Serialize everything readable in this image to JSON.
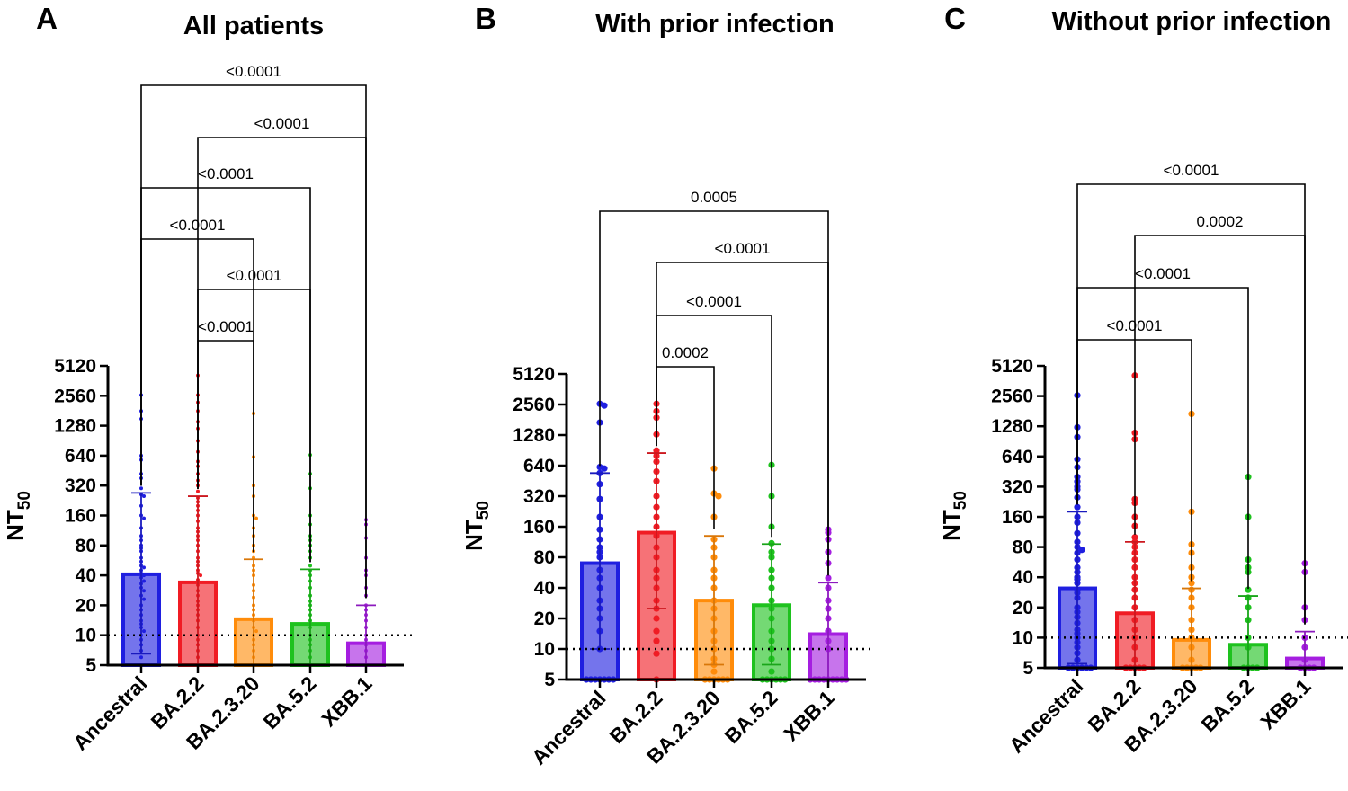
{
  "chart_data": [
    {
      "type": "bar",
      "panel_letter": "A",
      "title": "All patients",
      "ylabel": "NT",
      "ylabel_subscript": "50",
      "yscale": "log2",
      "ylim": [
        5,
        5120
      ],
      "yticks": [
        5,
        10,
        20,
        40,
        80,
        160,
        320,
        640,
        1280,
        2560,
        5120
      ],
      "threshold": 10,
      "categories": [
        "Ancestral",
        "BA.2.2",
        "BA.2.3.20",
        "BA.5.2",
        "XBB.1"
      ],
      "colors": [
        "#1f1fe0",
        "#f01c24",
        "#ff8c0a",
        "#1ec21e",
        "#a51ee0"
      ],
      "means": [
        41,
        34,
        14.5,
        13,
        8.3
      ],
      "error_bars": [
        [
          6.5,
          270
        ],
        [
          5,
          250
        ],
        [
          5,
          58
        ],
        [
          5,
          46
        ],
        [
          5,
          20
        ]
      ],
      "points": [
        [
          2600,
          1800,
          1500,
          640,
          580,
          420,
          380,
          300,
          260,
          250,
          200,
          160,
          150,
          120,
          100,
          90,
          80,
          75,
          70,
          60,
          55,
          50,
          48,
          45,
          42,
          40,
          38,
          35,
          33,
          30,
          28,
          25,
          23,
          20,
          18,
          16,
          14,
          13,
          12,
          11,
          10,
          9,
          8,
          7,
          6,
          5,
          5,
          5,
          5,
          5
        ],
        [
          4100,
          2600,
          2200,
          1800,
          1400,
          1200,
          900,
          700,
          560,
          500,
          420,
          360,
          320,
          280,
          240,
          220,
          200,
          180,
          160,
          140,
          120,
          110,
          100,
          90,
          80,
          70,
          60,
          55,
          50,
          45,
          42,
          40,
          36,
          32,
          28,
          25,
          22,
          20,
          18,
          16,
          14,
          12,
          10,
          9,
          8,
          7,
          6,
          5,
          5,
          5,
          5,
          5
        ],
        [
          1700,
          620,
          320,
          250,
          160,
          150,
          120,
          100,
          80,
          70,
          60,
          50,
          45,
          40,
          32,
          28,
          24,
          20,
          18,
          16,
          14,
          12,
          11,
          10,
          9,
          8,
          7,
          6,
          5,
          5,
          5,
          5,
          5
        ],
        [
          650,
          420,
          300,
          160,
          130,
          100,
          90,
          80,
          70,
          60,
          50,
          45,
          40,
          35,
          30,
          25,
          22,
          20,
          18,
          16,
          14,
          12,
          10,
          9,
          8,
          7,
          6,
          5,
          5,
          5,
          5
        ],
        [
          145,
          130,
          95,
          60,
          45,
          40,
          30,
          25,
          20,
          18,
          16,
          14,
          12,
          10,
          9,
          8,
          7,
          6,
          5,
          5,
          5,
          5
        ]
      ],
      "comparisons": [
        {
          "from": 0,
          "to": 4,
          "label": "<0.0001"
        },
        {
          "from": 1,
          "to": 4,
          "label": "<0.0001"
        },
        {
          "from": 0,
          "to": 3,
          "label": "<0.0001"
        },
        {
          "from": 0,
          "to": 2,
          "label": "<0.0001"
        },
        {
          "from": 1,
          "to": 3,
          "label": "<0.0001"
        },
        {
          "from": 1,
          "to": 2,
          "label": "<0.0001"
        }
      ]
    },
    {
      "type": "bar",
      "panel_letter": "B",
      "title": "With prior infection",
      "ylabel": "NT",
      "ylabel_subscript": "50",
      "yscale": "log2",
      "ylim": [
        5,
        5120
      ],
      "yticks": [
        5,
        10,
        20,
        40,
        80,
        160,
        320,
        640,
        1280,
        2560,
        5120
      ],
      "threshold": 10,
      "categories": [
        "Ancestral",
        "BA.2.2",
        "BA.2.3.20",
        "BA.5.2",
        "XBB.1"
      ],
      "colors": [
        "#1f1fe0",
        "#f01c24",
        "#ff8c0a",
        "#1ec21e",
        "#a51ee0"
      ],
      "means": [
        70,
        140,
        30,
        27,
        14
      ],
      "error_bars": [
        [
          10,
          540
        ],
        [
          25,
          850
        ],
        [
          7,
          130
        ],
        [
          7,
          108
        ],
        [
          5,
          45
        ]
      ],
      "points": [
        [
          2600,
          2500,
          1700,
          620,
          600,
          540,
          420,
          300,
          200,
          150,
          120,
          100,
          90,
          80,
          60,
          50,
          40,
          30,
          25,
          20,
          15,
          10,
          5,
          5,
          5,
          5,
          5,
          5,
          5
        ],
        [
          2600,
          2200,
          1900,
          1300,
          900,
          800,
          700,
          560,
          450,
          320,
          250,
          200,
          160,
          130,
          100,
          80,
          60,
          50,
          40,
          30,
          25,
          20,
          15,
          12,
          9,
          5
        ],
        [
          600,
          340,
          320,
          200,
          120,
          100,
          80,
          60,
          50,
          40,
          30,
          25,
          20,
          15,
          12,
          10,
          8,
          7,
          6,
          5,
          5,
          5,
          5,
          5,
          5
        ],
        [
          650,
          320,
          160,
          110,
          90,
          80,
          60,
          50,
          40,
          30,
          25,
          20,
          15,
          12,
          10,
          8,
          6,
          5,
          5,
          5,
          5,
          5,
          5
        ],
        [
          150,
          140,
          120,
          90,
          70,
          50,
          40,
          30,
          25,
          20,
          15,
          12,
          10,
          5,
          5,
          5,
          5,
          5,
          5,
          5,
          5,
          5
        ]
      ],
      "comparisons": [
        {
          "from": 0,
          "to": 4,
          "label": "0.0005"
        },
        {
          "from": 1,
          "to": 4,
          "label": "<0.0001"
        },
        {
          "from": 1,
          "to": 3,
          "label": "<0.0001"
        },
        {
          "from": 1,
          "to": 2,
          "label": "0.0002"
        }
      ]
    },
    {
      "type": "bar",
      "panel_letter": "C",
      "title": "Without prior infection",
      "ylabel": "NT",
      "ylabel_subscript": "50",
      "yscale": "log2",
      "ylim": [
        5,
        5120
      ],
      "yticks": [
        5,
        10,
        20,
        40,
        80,
        160,
        320,
        640,
        1280,
        2560,
        5120
      ],
      "threshold": 10,
      "categories": [
        "Ancestral",
        "BA.2.2",
        "BA.2.3.20",
        "BA.5.2",
        "XBB.1"
      ],
      "colors": [
        "#1f1fe0",
        "#f01c24",
        "#ff8c0a",
        "#1ec21e",
        "#a51ee0"
      ],
      "means": [
        31,
        17.5,
        9.5,
        8.5,
        6.2
      ],
      "error_bars": [
        [
          5.5,
          180
        ],
        [
          5,
          90
        ],
        [
          5,
          31
        ],
        [
          5,
          26
        ],
        [
          5,
          11.5
        ]
      ],
      "points": [
        [
          2600,
          1250,
          1000,
          600,
          500,
          400,
          360,
          320,
          300,
          250,
          200,
          160,
          140,
          110,
          90,
          80,
          75,
          70,
          60,
          50,
          45,
          40,
          38,
          35,
          30,
          28,
          25,
          20,
          18,
          16,
          14,
          12,
          11,
          10,
          9,
          8,
          7,
          6,
          5,
          5,
          5,
          5,
          5,
          5
        ],
        [
          4100,
          1100,
          950,
          240,
          220,
          160,
          130,
          100,
          90,
          80,
          70,
          60,
          50,
          40,
          35,
          30,
          25,
          20,
          15,
          12,
          10,
          8,
          6,
          5,
          5,
          5,
          5,
          5
        ],
        [
          1700,
          180,
          85,
          70,
          50,
          40,
          35,
          30,
          25,
          20,
          15,
          12,
          10,
          8,
          6,
          5,
          5,
          5,
          5,
          5
        ],
        [
          400,
          160,
          60,
          50,
          45,
          30,
          25,
          20,
          15,
          10,
          8,
          5,
          5,
          5,
          5
        ],
        [
          55,
          45,
          20,
          15,
          10,
          8,
          6,
          5,
          5,
          5,
          5
        ]
      ],
      "comparisons": [
        {
          "from": 0,
          "to": 4,
          "label": "<0.0001"
        },
        {
          "from": 1,
          "to": 4,
          "label": "0.0002"
        },
        {
          "from": 0,
          "to": 3,
          "label": "<0.0001"
        },
        {
          "from": 0,
          "to": 2,
          "label": "<0.0001"
        }
      ]
    }
  ]
}
